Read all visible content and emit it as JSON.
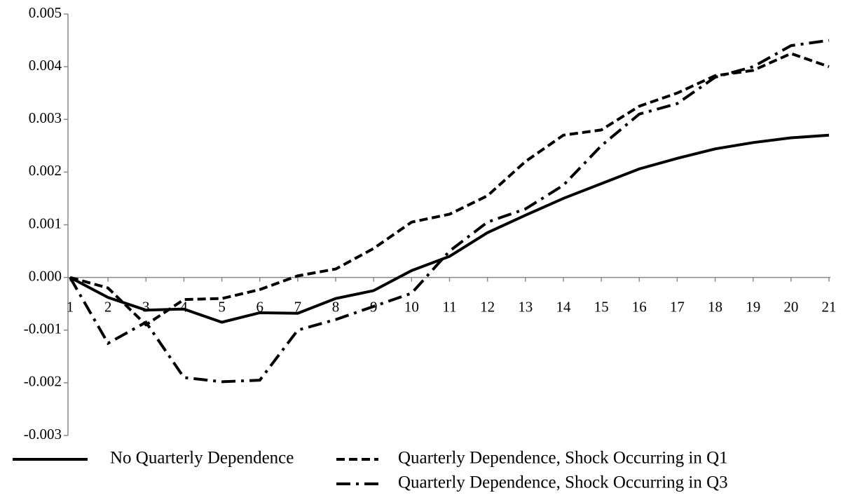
{
  "chart_data": {
    "type": "line",
    "categories": [
      1,
      2,
      3,
      4,
      5,
      6,
      7,
      8,
      9,
      10,
      11,
      12,
      13,
      14,
      15,
      16,
      17,
      18,
      19,
      20,
      21
    ],
    "series": [
      {
        "name": "No Quarterly Dependence",
        "color": "#000000",
        "line_style": "solid",
        "values": [
          0,
          -0.00038,
          -0.00062,
          -0.0006,
          -0.00085,
          -0.00067,
          -0.00068,
          -0.0004,
          -0.00025,
          0.00013,
          0.0004,
          0.00085,
          0.00118,
          0.0015,
          0.00178,
          0.00206,
          0.00226,
          0.00244,
          0.00256,
          0.00265,
          0.0027
        ]
      },
      {
        "name": "Quarterly Dependence, Shock Occurring in Q1",
        "color": "#000000",
        "line_style": "dashed",
        "values": [
          0,
          -0.0002,
          -0.0009,
          -0.00042,
          -0.0004,
          -0.00023,
          3e-05,
          0.00016,
          0.00055,
          0.00105,
          0.0012,
          0.00155,
          0.0022,
          0.0027,
          0.0028,
          0.00325,
          0.0035,
          0.00383,
          0.00393,
          0.00425,
          0.004
        ]
      },
      {
        "name": "Quarterly Dependence, Shock Occurring in Q3",
        "color": "#000000",
        "line_style": "dashdot",
        "values": [
          0,
          -0.00125,
          -0.00085,
          -0.0019,
          -0.00198,
          -0.00195,
          -0.001,
          -0.0008,
          -0.00055,
          -0.0003,
          0.0005,
          0.00105,
          0.0013,
          0.00175,
          0.0025,
          0.0031,
          0.0033,
          0.0038,
          0.004,
          0.0044,
          0.0045
        ]
      }
    ],
    "ylim": [
      -0.003,
      0.005
    ],
    "yticks": [
      0.005,
      0.004,
      0.003,
      0.002,
      0.001,
      {
        "value": 0,
        "label": "0.000"
      },
      -0.001,
      -0.002,
      -0.003
    ],
    "grid": false
  }
}
